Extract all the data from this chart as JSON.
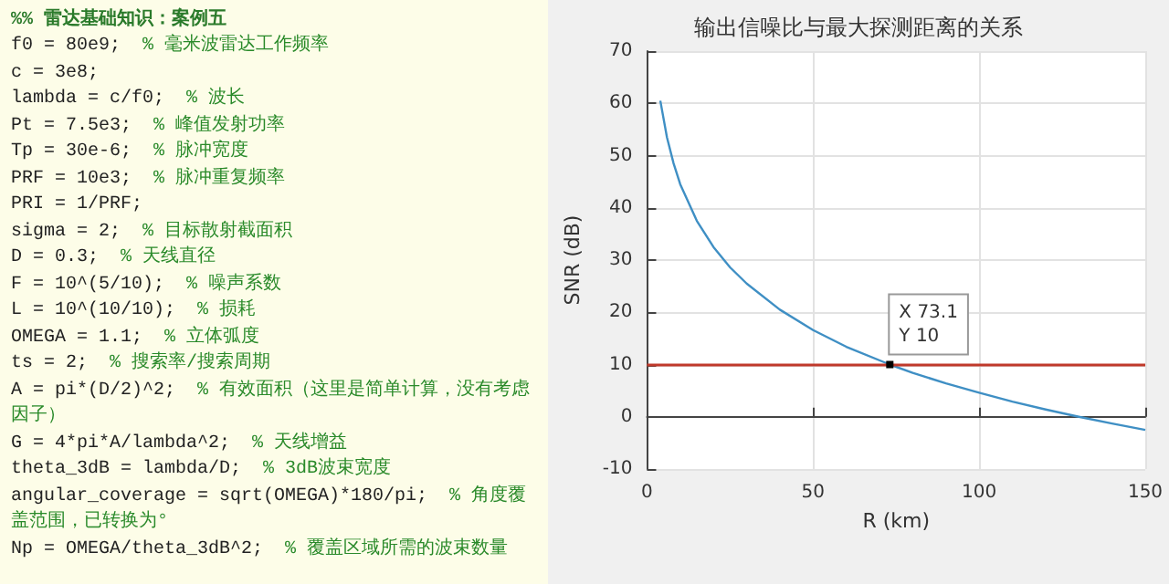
{
  "chart_data": [
    {
      "type": "other",
      "title": "%% 雷达基础知识：案例五",
      "annotations": [
        "f0 = 80e9;  % 毫米波雷达工作频率",
        "c = 3e8;",
        "lambda = c/f0;  % 波长",
        "Pt = 7.5e3;  % 峰值发射功率",
        "Tp = 30e-6;  % 脉冲宽度",
        "PRF = 10e3;  % 脉冲重复频率",
        "PRI = 1/PRF;",
        "sigma = 2;  % 目标散射截面积",
        "D = 0.3;  % 天线直径",
        "F = 10^(5/10);  % 噪声系数",
        "L = 10^(10/10);  % 损耗",
        "OMEGA = 1.1;  % 立体弧度",
        "ts = 2;  % 搜索率/搜索周期",
        "A = pi*(D/2)^2;  % 有效面积（这里是简单计算，没有考虑因子）",
        "G = 4*pi*A/lambda^2;  % 天线增益",
        "theta_3dB = lambda/D;  % 3dB波束宽度",
        "angular_coverage = sqrt(OMEGA)*180/pi;  % 角度覆盖范围，已转换为°",
        "Np = OMEGA/theta_3dB^2;  % 覆盖区域所需的波束数量"
      ]
    },
    {
      "type": "line",
      "title": "输出信噪比与最大探测距离的关系",
      "xlabel": "R (km)",
      "ylabel": "SNR (dB)",
      "x": [
        4,
        6,
        8,
        10,
        15,
        20,
        25,
        30,
        40,
        50,
        60,
        73.1,
        80,
        90,
        100,
        110,
        120,
        130,
        140,
        150
      ],
      "values": [
        60.5,
        53.5,
        48.5,
        44.5,
        37.5,
        32.5,
        28.6,
        25.5,
        20.5,
        16.6,
        13.4,
        10,
        8.4,
        6.4,
        4.6,
        2.9,
        1.4,
        0,
        -1.3,
        -2.5
      ],
      "color": "#3f8fc4",
      "xlim": [
        0,
        150
      ],
      "xticks": [
        0,
        50,
        100,
        150
      ],
      "ylim": [
        -10,
        70
      ],
      "yticks": [
        -10,
        0,
        10,
        20,
        30,
        40,
        50,
        60,
        70
      ],
      "ref_lines": [
        {
          "axis": "y",
          "value": 10,
          "color": "#c0392b"
        }
      ],
      "annotations": [
        {
          "text": "X 73.1\nY 10",
          "x": 73.1,
          "y": 10
        }
      ],
      "grid": true,
      "marker": "none",
      "line_style": "solid"
    }
  ]
}
